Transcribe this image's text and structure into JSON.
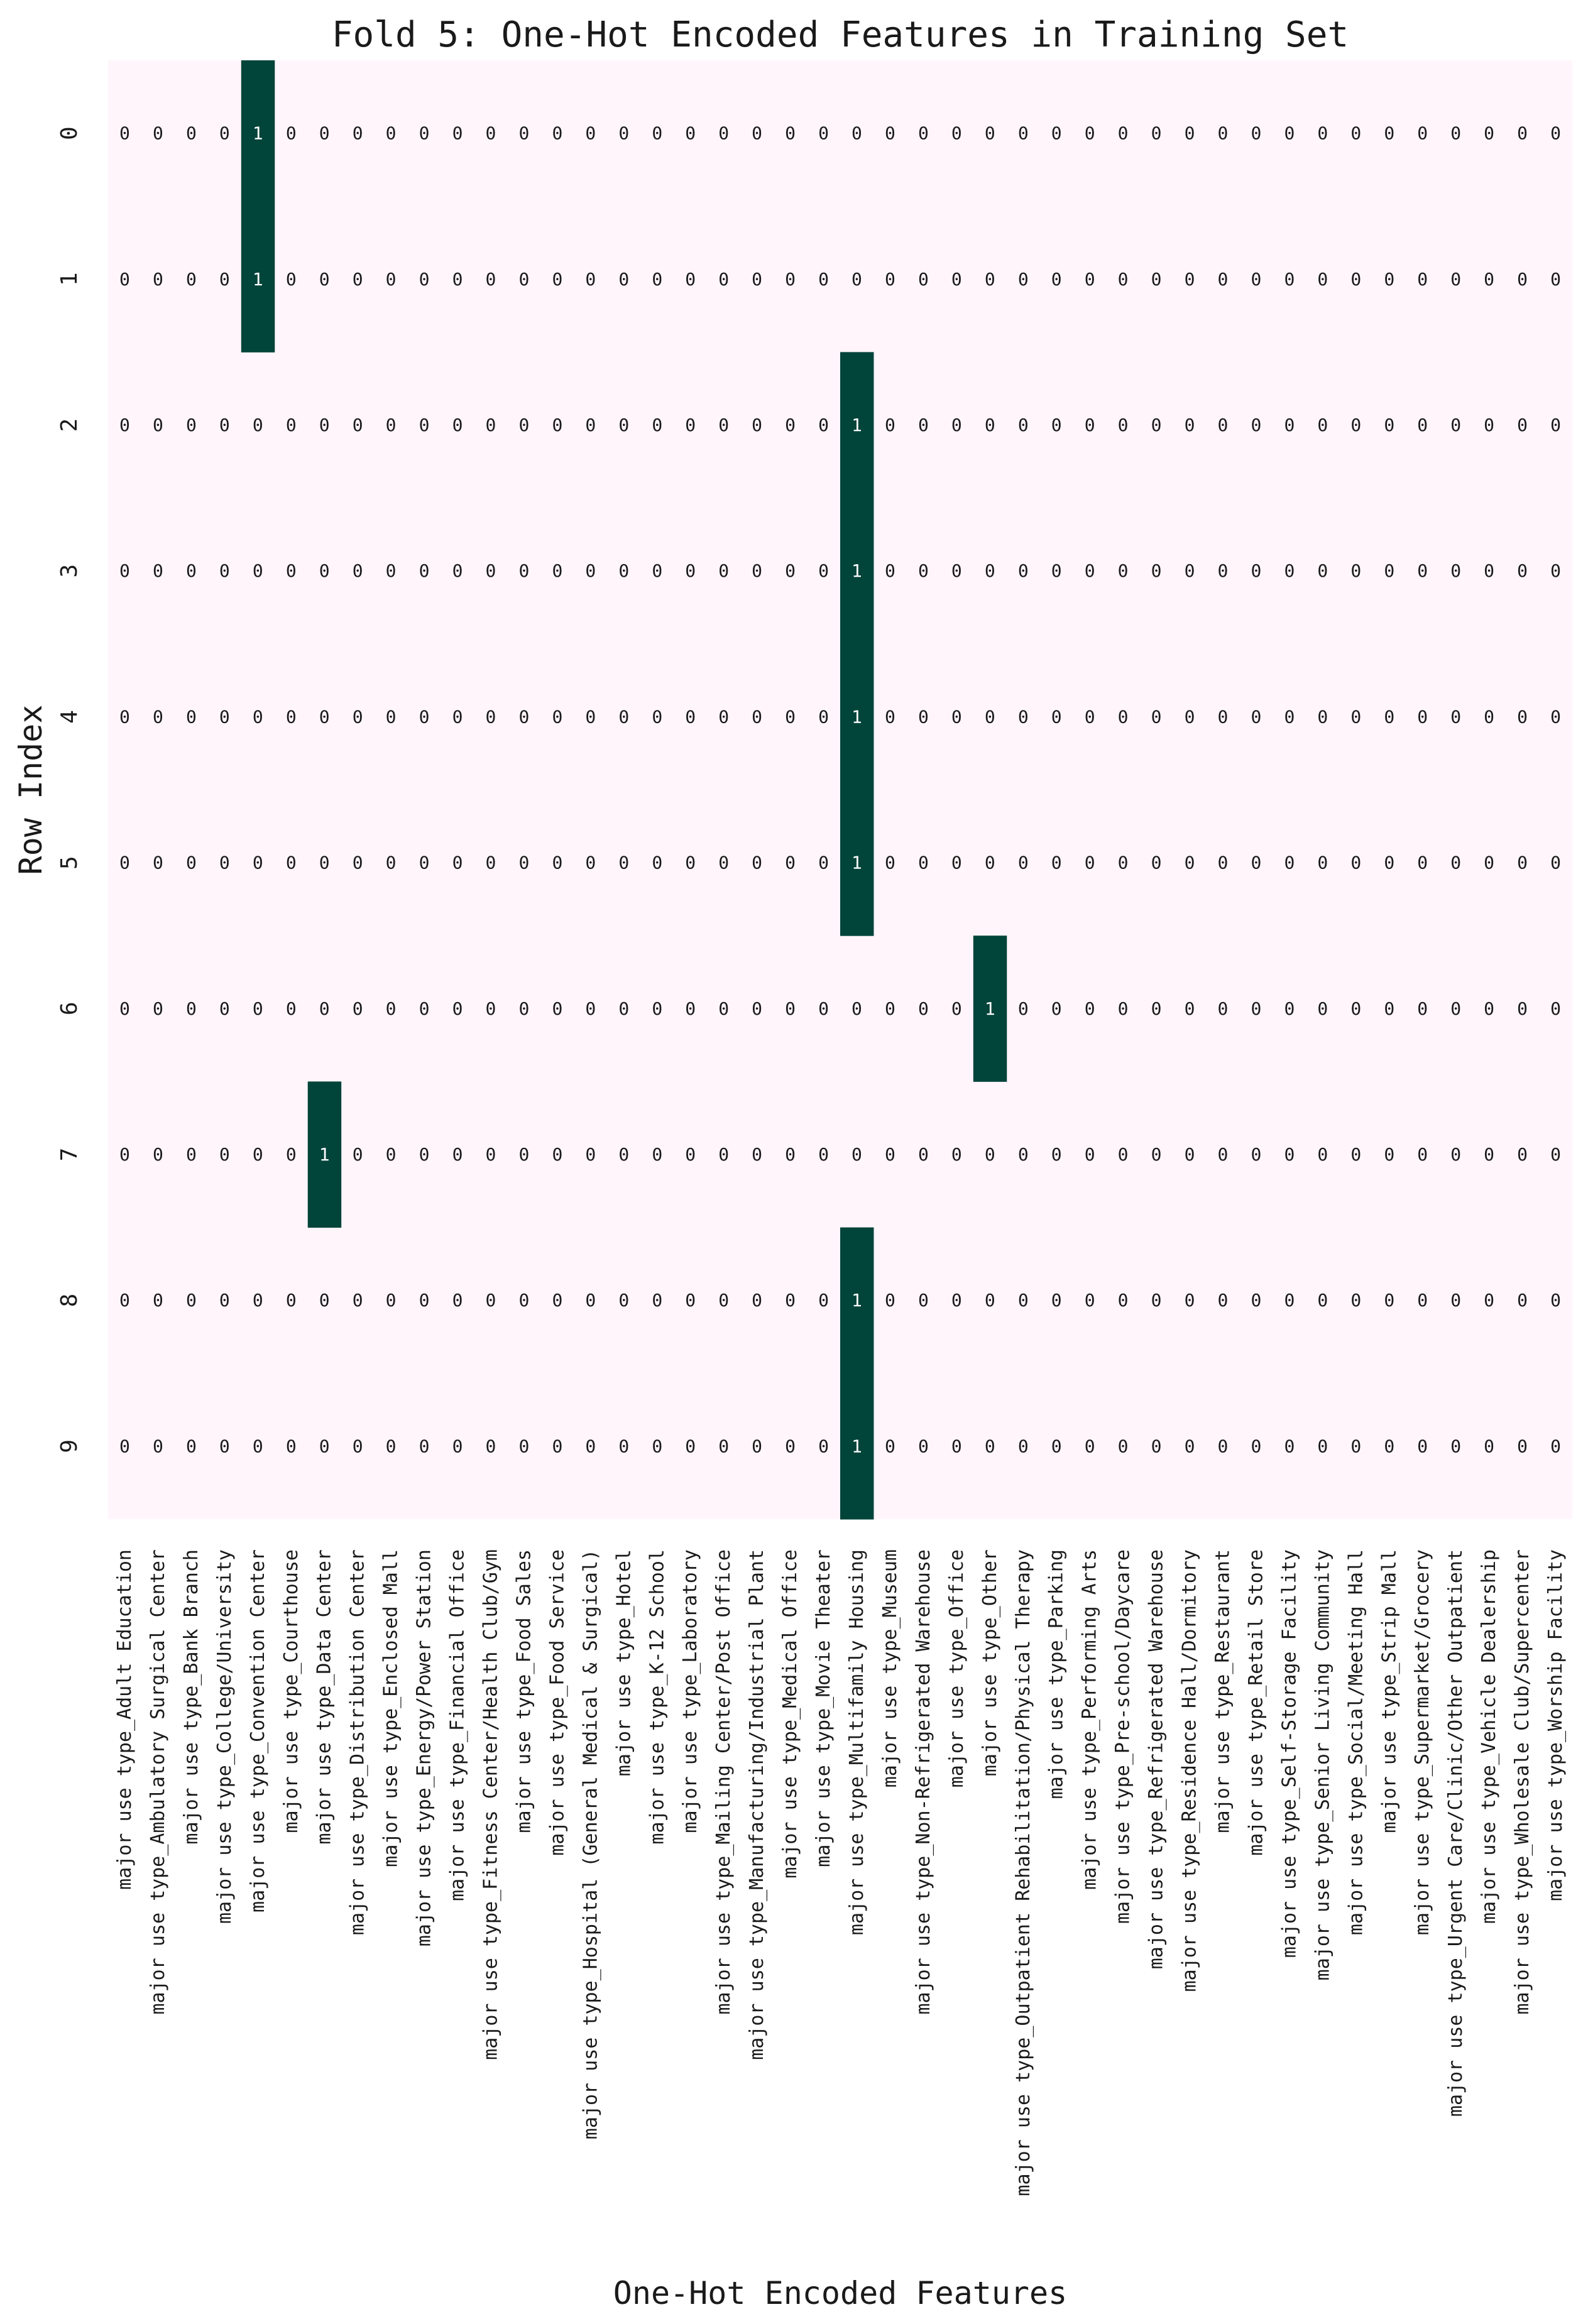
{
  "chart_data": {
    "type": "heatmap",
    "title": "Fold 5: One-Hot Encoded Features in Training Set",
    "xlabel": "One-Hot Encoded Features",
    "ylabel": "Row Index",
    "rows": [
      "0",
      "1",
      "2",
      "3",
      "4",
      "5",
      "6",
      "7",
      "8",
      "9"
    ],
    "columns": [
      "major use type_Adult Education",
      "major use type_Ambulatory Surgical Center",
      "major use type_Bank Branch",
      "major use type_College/University",
      "major use type_Convention Center",
      "major use type_Courthouse",
      "major use type_Data Center",
      "major use type_Distribution Center",
      "major use type_Enclosed Mall",
      "major use type_Energy/Power Station",
      "major use type_Financial Office",
      "major use type_Fitness Center/Health Club/Gym",
      "major use type_Food Sales",
      "major use type_Food Service",
      "major use type_Hospital (General Medical & Surgical)",
      "major use type_Hotel",
      "major use type_K-12 School",
      "major use type_Laboratory",
      "major use type_Mailing Center/Post Office",
      "major use type_Manufacturing/Industrial Plant",
      "major use type_Medical Office",
      "major use type_Movie Theater",
      "major use type_Multifamily Housing",
      "major use type_Museum",
      "major use type_Non-Refrigerated Warehouse",
      "major use type_Office",
      "major use type_Other",
      "major use type_Outpatient Rehabilitation/Physical Therapy",
      "major use type_Parking",
      "major use type_Performing Arts",
      "major use type_Pre-school/Daycare",
      "major use type_Refrigerated Warehouse",
      "major use type_Residence Hall/Dormitory",
      "major use type_Restaurant",
      "major use type_Retail Store",
      "major use type_Self-Storage Facility",
      "major use type_Senior Living Community",
      "major use type_Social/Meeting Hall",
      "major use type_Strip Mall",
      "major use type_Supermarket/Grocery",
      "major use type_Urgent Care/Clinic/Other Outpatient",
      "major use type_Vehicle Dealership",
      "major use type_Wholesale Club/Supercenter",
      "major use type_Worship Facility"
    ],
    "hot_column_per_row": [
      4,
      4,
      22,
      22,
      22,
      22,
      26,
      6,
      22,
      22
    ],
    "value_range": [
      0,
      1
    ],
    "colors": {
      "zero": "#fff5fa",
      "one": "#00443a",
      "text_on_zero": "#1a1a1a",
      "text_on_one": "#ffffff"
    }
  }
}
